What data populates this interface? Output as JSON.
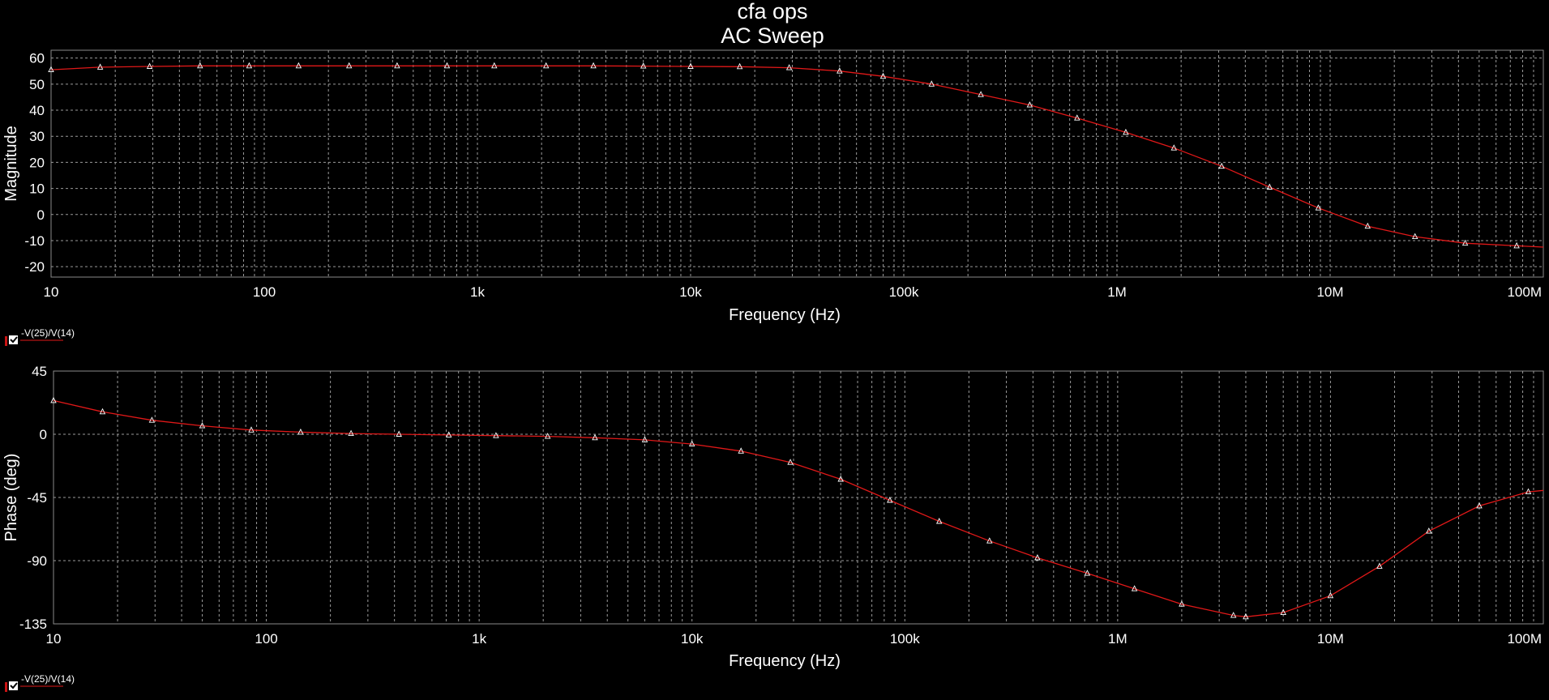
{
  "header": {
    "title": "cfa ops",
    "subtitle": "AC Sweep"
  },
  "colors": {
    "background": "#000000",
    "trace": "#e01818",
    "marker": "#ffffff",
    "grid": "#9a9a9a",
    "checkbox_accent": "#c81414"
  },
  "chart_data": [
    {
      "type": "line",
      "xscale": "log",
      "xlabel": "Frequency (Hz)",
      "ylabel": "Magnitude",
      "xlim": [
        10,
        100000000
      ],
      "ylim": [
        -24,
        63
      ],
      "x_ticks": [
        10,
        100,
        1000,
        10000,
        100000,
        1000000,
        10000000,
        100000000
      ],
      "x_tick_labels": [
        "10",
        "100",
        "1k",
        "10k",
        "100k",
        "1M",
        "10M",
        "100M"
      ],
      "y_ticks": [
        60,
        50,
        40,
        30,
        20,
        10,
        0,
        -10,
        -20
      ],
      "y_tick_labels": [
        "60",
        "50",
        "40",
        "30",
        "20",
        "10",
        "0",
        "-10",
        "-20"
      ],
      "grid": true,
      "legend": "bottom-left",
      "series": [
        {
          "name": "-V(25)/V(14)",
          "x": [
            10,
            17,
            29,
            50,
            85,
            145,
            250,
            420,
            720,
            1200,
            2100,
            3500,
            6000,
            10000,
            17000,
            29000,
            50000,
            80000,
            135000,
            230000,
            390000,
            650000,
            1100000,
            1850000,
            3100000,
            5200000,
            8800000,
            15000000,
            25000000,
            43000000,
            75000000,
            100000000
          ],
          "y": [
            55.5,
            56.5,
            56.8,
            57,
            57,
            57,
            57,
            57,
            57,
            57,
            57,
            57,
            56.9,
            56.8,
            56.7,
            56.3,
            55,
            53,
            50,
            46,
            42,
            37,
            31.5,
            25.5,
            18.5,
            10.5,
            2.5,
            -4.5,
            -8.5,
            -11,
            -12,
            -12.5
          ]
        }
      ]
    },
    {
      "type": "line",
      "xscale": "log",
      "xlabel": "Frequency (Hz)",
      "ylabel": "Phase (deg)",
      "xlim": [
        10,
        100000000
      ],
      "ylim": [
        -135,
        45
      ],
      "x_ticks": [
        10,
        100,
        1000,
        10000,
        100000,
        1000000,
        10000000,
        100000000
      ],
      "x_tick_labels": [
        "10",
        "100",
        "1k",
        "10k",
        "100k",
        "1M",
        "10M",
        "100M"
      ],
      "y_ticks": [
        45,
        0,
        -45,
        -90,
        -135
      ],
      "y_tick_labels": [
        "45",
        "0",
        "-45",
        "-90",
        "-135"
      ],
      "grid": true,
      "legend": "bottom-left",
      "series": [
        {
          "name": "-V(25)/V(14)",
          "x": [
            10,
            17,
            29,
            50,
            85,
            145,
            250,
            420,
            720,
            1200,
            2100,
            3500,
            6000,
            10000,
            17000,
            29000,
            50000,
            85000,
            145000,
            250000,
            420000,
            720000,
            1200000,
            2000000,
            3500000,
            4000000,
            6000000,
            10000000,
            17000000,
            29000000,
            50000000,
            85000000,
            100000000
          ],
          "y": [
            24,
            16,
            10,
            6,
            3,
            1.5,
            0.5,
            0,
            -0.5,
            -1,
            -1.5,
            -2.5,
            -4,
            -7,
            -12,
            -20,
            -32,
            -47,
            -62,
            -76,
            -88,
            -99,
            -110,
            -121,
            -129,
            -130,
            -127,
            -115,
            -94,
            -69,
            -51,
            -41,
            -40
          ]
        }
      ]
    }
  ]
}
